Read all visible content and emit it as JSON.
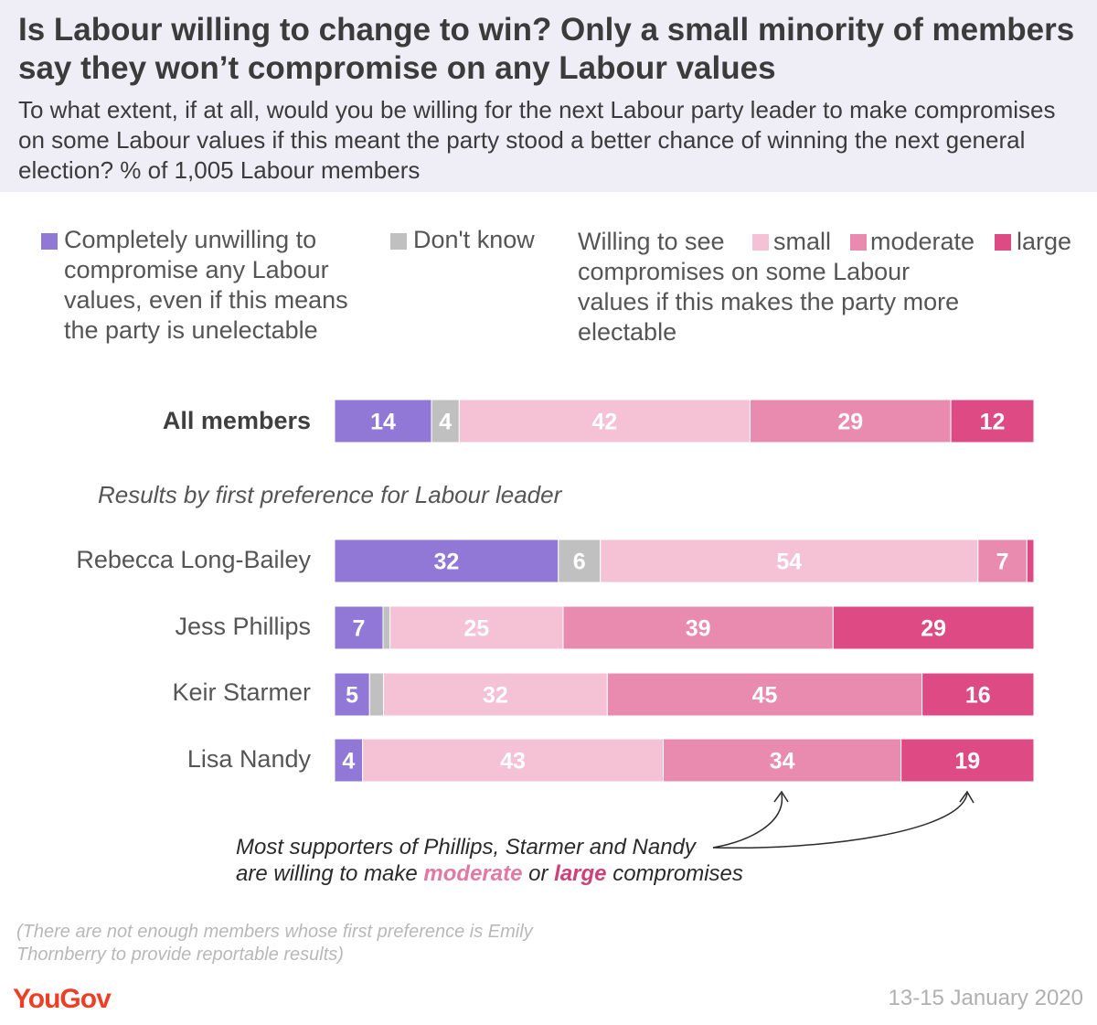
{
  "title": "Is Labour willing to change to win? Only a small minority of members say they won’t compromise on any Labour values",
  "subtitle": "To what extent, if at all, would you be willing for the next Labour party leader to make compromises on some Labour values if this meant the party stood a better chance of winning the next general election? % of 1,005 Labour members",
  "legend": {
    "unwilling": "Completely unwilling to compromise any Labour values, even if this means the party is unelectable",
    "dont_know": "Don't know",
    "willing_prefix": "Willing to see",
    "small": "small",
    "moderate": "moderate",
    "large": "large",
    "willing_suffix": "compromises on some Labour values if this makes the party more electable"
  },
  "section_label": "Results by first preference for Labour leader",
  "annotation": {
    "line1": "Most supporters of Phillips, Starmer and Nandy",
    "line2_a": "are willing to make",
    "moderate": "moderate",
    "or": "or",
    "large": "large",
    "line2_b": "compromises"
  },
  "footnote": "(There are not enough members whose first preference is Emily Thornberry to provide reportable results)",
  "logo": "YouGov",
  "date": "13-15 January 2020",
  "colors": {
    "unwilling": "#9178d7",
    "dont_know": "#c0c0c0",
    "small": "#f4c2d4",
    "moderate": "#e98bae",
    "large": "#de4a84",
    "header_bg": "#efedf6"
  },
  "chart_data": {
    "type": "bar",
    "orientation": "horizontal",
    "stacked": true,
    "categories": [
      "All members",
      "Rebecca Long-Bailey",
      "Jess Phillips",
      "Keir Starmer",
      "Lisa Nandy"
    ],
    "series": [
      {
        "name": "Completely unwilling to compromise any Labour values, even if this means the party is unelectable",
        "key": "unwilling",
        "values": [
          14,
          32,
          7,
          5,
          4
        ]
      },
      {
        "name": "Don't know",
        "key": "dont_know",
        "values": [
          4,
          6,
          1,
          2,
          0
        ]
      },
      {
        "name": "small",
        "key": "small",
        "values": [
          42,
          54,
          25,
          32,
          43
        ]
      },
      {
        "name": "moderate",
        "key": "moderate",
        "values": [
          29,
          7,
          39,
          45,
          34
        ]
      },
      {
        "name": "large",
        "key": "large",
        "values": [
          12,
          1,
          29,
          16,
          19
        ]
      }
    ],
    "labels": [
      [
        "14",
        "4",
        "42",
        "29",
        "12"
      ],
      [
        "32",
        "6",
        "54",
        "7",
        ""
      ],
      [
        "7",
        "",
        "25",
        "39",
        "29"
      ],
      [
        "5",
        "",
        "32",
        "45",
        "16"
      ],
      [
        "4",
        "",
        "43",
        "34",
        "19"
      ]
    ]
  }
}
